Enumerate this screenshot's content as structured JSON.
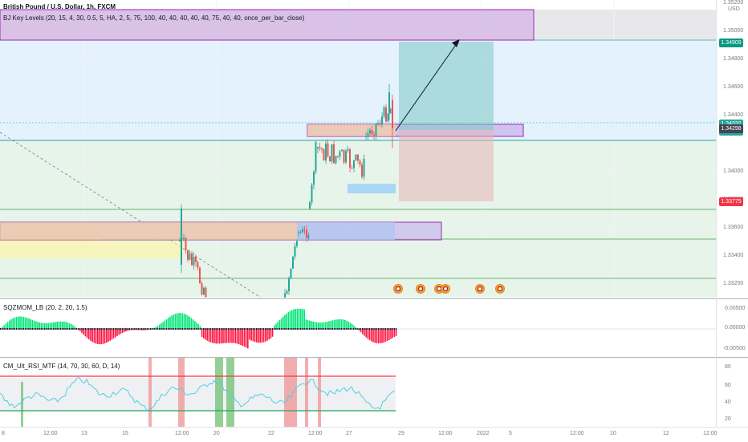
{
  "header": {
    "title": "British Pound / U.S. Dollar, 1h, FXCM",
    "indicator": "BJ Key Levels (20, 15, 4, 30, 0.5, 5, HA, 2, 5, 75, 100, 40, 40, 40, 40, 40, 75, 40, 40, once_per_bar_close)",
    "currency": "USD"
  },
  "price_axis": {
    "ticks": [
      {
        "label": "1.35200",
        "price": 1.352
      },
      {
        "label": "1.35000",
        "price": 1.35
      },
      {
        "label": "1.34800",
        "price": 1.348
      },
      {
        "label": "1.34600",
        "price": 1.346
      },
      {
        "label": "1.34400",
        "price": 1.344
      },
      {
        "label": "1.34000",
        "price": 1.34
      },
      {
        "label": "1.33800",
        "price": 1.338
      },
      {
        "label": "1.33600",
        "price": 1.336
      },
      {
        "label": "1.33400",
        "price": 1.334
      },
      {
        "label": "1.33200",
        "price": 1.332
      }
    ],
    "badges": [
      {
        "label": "1.34909",
        "price": 1.34909,
        "color": "#089981"
      },
      {
        "label": "1.34332",
        "sub": "30:22",
        "price": 1.34332,
        "color": "#26a69a"
      },
      {
        "label": "1.34298",
        "price": 1.34298,
        "color": "#434651"
      },
      {
        "label": "1.33775",
        "price": 1.33775,
        "color": "#f23645"
      }
    ]
  },
  "sqz": {
    "label": "SQZMOM_LB (20, 2, 20, 1.5)",
    "ticks": [
      "0.00500",
      "0.00000",
      "-0.00500"
    ]
  },
  "rsi": {
    "label": "CM_Ult_RSI_MTF (14, 70, 30, 60, D, 14)",
    "ticks": [
      "80",
      "60",
      "40",
      "20"
    ]
  },
  "time_axis": [
    "8",
    "12:00",
    "13",
    "15",
    "12:00",
    "20",
    "22",
    "12:00",
    "27",
    "29",
    "12:00",
    "2022",
    "5",
    "12:00",
    "10",
    "12",
    "12:00"
  ],
  "colors": {
    "bull": "#26a69a",
    "bear": "#ef5350",
    "zone_purple": "#9c27b0",
    "target": "#00897b",
    "stop": "#f23645"
  }
}
